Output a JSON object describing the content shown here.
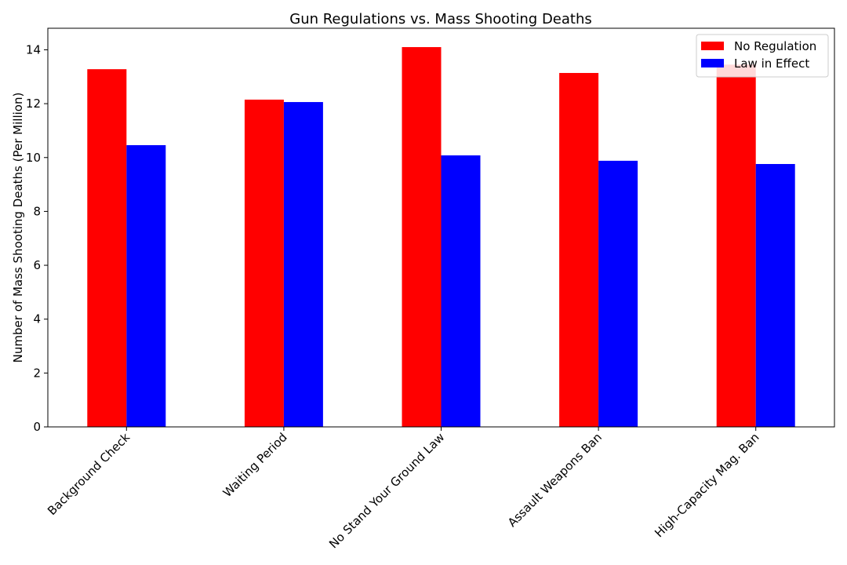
{
  "chart_data": {
    "type": "bar",
    "title": "Gun Regulations vs. Mass Shooting Deaths",
    "xlabel": "",
    "ylabel": "Number of Mass Shooting Deaths (Per Million)",
    "categories": [
      "Background Check",
      "Waiting Period",
      "No Stand Your Ground Law",
      "Assault Weapons Ban",
      "High-Capacity Mag. Ban"
    ],
    "series": [
      {
        "name": "No Regulation",
        "color": "#ff0000",
        "values": [
          13.28,
          12.15,
          14.1,
          13.14,
          13.45
        ]
      },
      {
        "name": "Law in Effect",
        "color": "#0000ff",
        "values": [
          10.46,
          12.06,
          10.08,
          9.88,
          9.76
        ]
      }
    ],
    "ylim": [
      0,
      14.8
    ],
    "yticks": [
      0,
      2,
      4,
      6,
      8,
      10,
      12,
      14
    ],
    "grid": false,
    "legend_position": "top-right",
    "x_tick_rotation": "45deg"
  }
}
